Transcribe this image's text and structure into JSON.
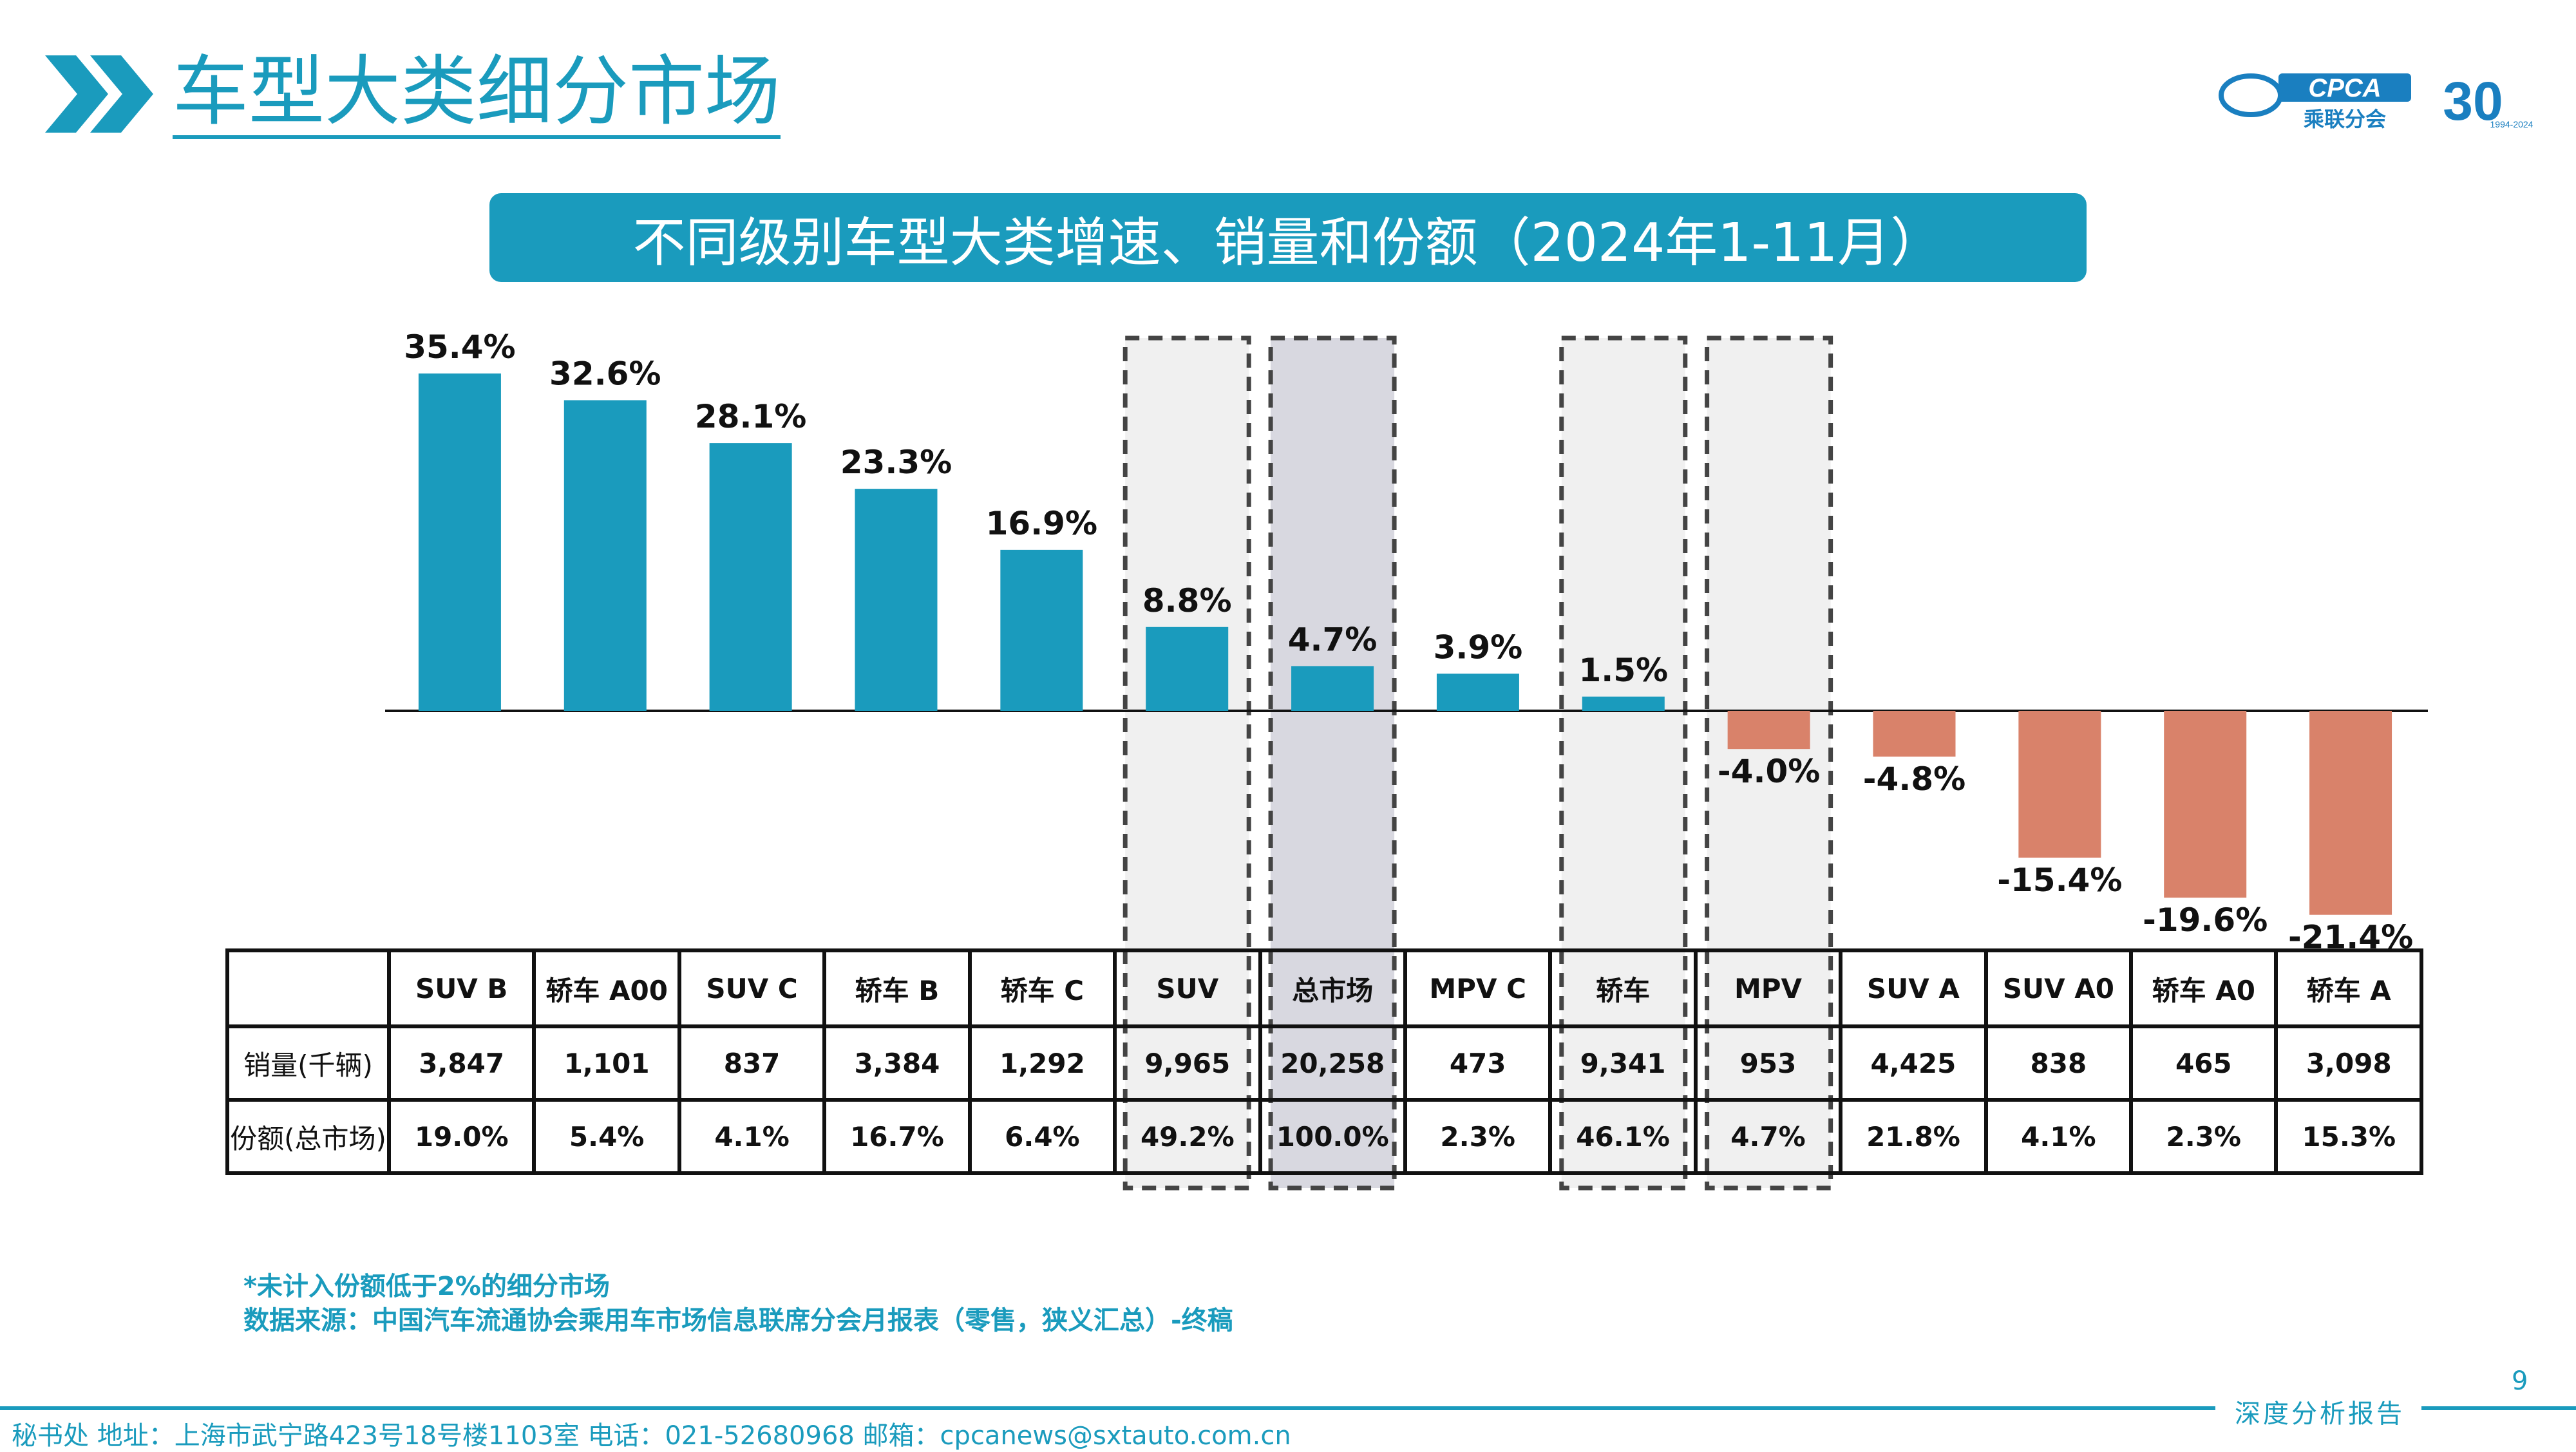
{
  "header": {
    "title": "车型大类细分市场",
    "logo_text": "CPCA",
    "logo_sub": "乘联分会",
    "anniv": "30",
    "anniv_years": "1994-2024"
  },
  "banner": "不同级别车型大类增速、销量和份额（2024年1-11月）",
  "chart_data": {
    "type": "bar",
    "title": "不同级别车型大类增速、销量和份额（2024年1-11月）",
    "categories": [
      "SUV B",
      "轿车 A00",
      "SUV C",
      "轿车 B",
      "轿车 C",
      "SUV",
      "总市场",
      "MPV C",
      "轿车",
      "MPV",
      "SUV A",
      "SUV A0",
      "轿车 A0",
      "轿车 A"
    ],
    "values": [
      35.4,
      32.6,
      28.1,
      23.3,
      16.9,
      8.8,
      4.7,
      3.9,
      1.5,
      -4.0,
      -4.8,
      -15.4,
      -19.6,
      -21.4
    ],
    "value_labels": [
      "35.4%",
      "32.6%",
      "28.1%",
      "23.3%",
      "16.9%",
      "8.8%",
      "4.7%",
      "3.9%",
      "1.5%",
      "-4.0%",
      "-4.8%",
      "-15.4%",
      "-19.6%",
      "-21.4%"
    ],
    "unit": "%",
    "positive_color": "#1a9bbd",
    "negative_color": "#d9826a",
    "highlight_bg": "#f0f0f0",
    "highlight_total_bg": "#d8d8e0",
    "highlighted": [
      "SUV",
      "总市场",
      "轿车",
      "MPV"
    ]
  },
  "table": {
    "rows": [
      {
        "label": "销量(千辆)",
        "values": [
          "3,847",
          "1,101",
          "837",
          "3,384",
          "1,292",
          "9,965",
          "20,258",
          "473",
          "9,341",
          "953",
          "4,425",
          "838",
          "465",
          "3,098"
        ]
      },
      {
        "label": "份额(总市场)",
        "values": [
          "19.0%",
          "5.4%",
          "4.1%",
          "16.7%",
          "6.4%",
          "49.2%",
          "100.0%",
          "2.3%",
          "46.1%",
          "4.7%",
          "21.8%",
          "4.1%",
          "2.3%",
          "15.3%"
        ]
      }
    ]
  },
  "notes": {
    "note1": "*未计入份额低于2%的细分市场",
    "note2": "数据来源：中国汽车流通协会乘用车市场信息联席分会月报表（零售，狭义汇总）-终稿"
  },
  "footer": {
    "page_number": "9",
    "tag": "深度分析报告",
    "contact": "秘书处  地址：上海市武宁路423号18号楼1103室  电话：021-52680968  邮箱：cpcanews@sxtauto.com.cn"
  }
}
